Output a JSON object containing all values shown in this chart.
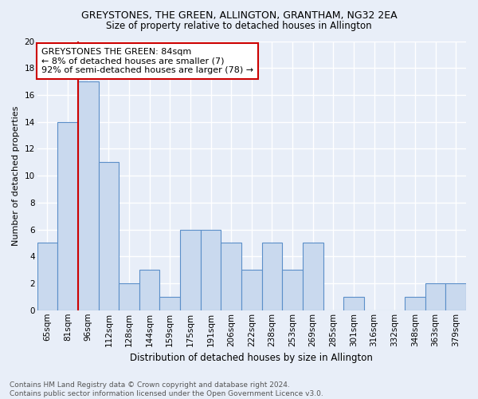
{
  "title": "GREYSTONES, THE GREEN, ALLINGTON, GRANTHAM, NG32 2EA",
  "subtitle": "Size of property relative to detached houses in Allington",
  "xlabel": "Distribution of detached houses by size in Allington",
  "ylabel": "Number of detached properties",
  "categories": [
    "65sqm",
    "81sqm",
    "96sqm",
    "112sqm",
    "128sqm",
    "144sqm",
    "159sqm",
    "175sqm",
    "191sqm",
    "206sqm",
    "222sqm",
    "238sqm",
    "253sqm",
    "269sqm",
    "285sqm",
    "301sqm",
    "316sqm",
    "332sqm",
    "348sqm",
    "363sqm",
    "379sqm"
  ],
  "values": [
    5,
    14,
    17,
    11,
    2,
    3,
    1,
    6,
    6,
    5,
    3,
    5,
    3,
    5,
    0,
    1,
    0,
    0,
    1,
    2,
    2
  ],
  "bar_color": "#c9d9ee",
  "bar_edge_color": "#5b8fc9",
  "highlight_bar_index": 1,
  "highlight_line_color": "#cc0000",
  "annotation_text": "GREYSTONES THE GREEN: 84sqm\n← 8% of detached houses are smaller (7)\n92% of semi-detached houses are larger (78) →",
  "annotation_box_facecolor": "#ffffff",
  "annotation_box_edgecolor": "#cc0000",
  "ylim": [
    0,
    20
  ],
  "yticks": [
    0,
    2,
    4,
    6,
    8,
    10,
    12,
    14,
    16,
    18,
    20
  ],
  "footer_line1": "Contains HM Land Registry data © Crown copyright and database right 2024.",
  "footer_line2": "Contains public sector information licensed under the Open Government Licence v3.0.",
  "background_color": "#e8eef8",
  "plot_background_color": "#e8eef8",
  "grid_color": "#ffffff",
  "title_fontsize": 9,
  "subtitle_fontsize": 8.5,
  "xlabel_fontsize": 8.5,
  "ylabel_fontsize": 8,
  "tick_fontsize": 7.5,
  "annotation_fontsize": 8,
  "footer_fontsize": 6.5
}
